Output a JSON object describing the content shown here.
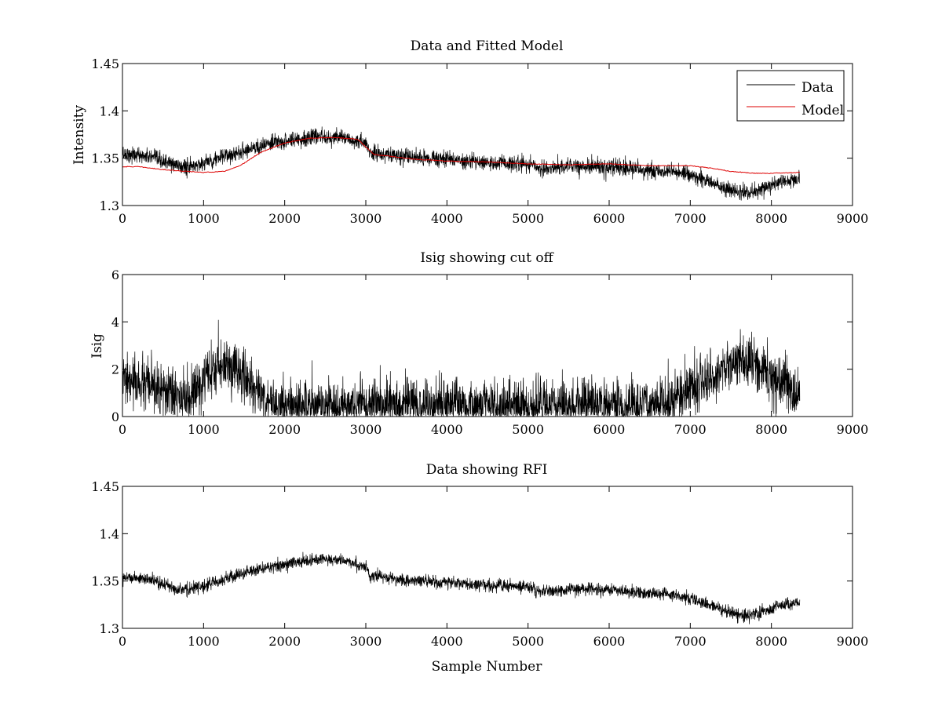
{
  "figure": {
    "background": "#ffffff"
  },
  "chart_data": [
    {
      "type": "line",
      "title": "Data and Fitted Model",
      "xlabel": "",
      "ylabel": "Intensity",
      "xlim": [
        0,
        9000
      ],
      "ylim": [
        1.3,
        1.45
      ],
      "xticks": [
        "0",
        "1000",
        "2000",
        "3000",
        "4000",
        "5000",
        "6000",
        "7000",
        "8000",
        "9000"
      ],
      "yticks": [
        "1.3",
        "1.35",
        "1.4",
        "1.45"
      ],
      "legend": {
        "position": "top-right",
        "entries": [
          "Data",
          "Model"
        ]
      },
      "series": [
        {
          "name": "Data",
          "color": "#000000",
          "noise": 0.0042,
          "x_end": 8350,
          "trend": [
            [
              0,
              1.355
            ],
            [
              300,
              1.352
            ],
            [
              600,
              1.344
            ],
            [
              800,
              1.34
            ],
            [
              1000,
              1.345
            ],
            [
              1300,
              1.353
            ],
            [
              1600,
              1.361
            ],
            [
              2000,
              1.368
            ],
            [
              2400,
              1.373
            ],
            [
              2700,
              1.372
            ],
            [
              3000,
              1.365
            ],
            [
              3050,
              1.356
            ],
            [
              3500,
              1.351
            ],
            [
              4000,
              1.349
            ],
            [
              4500,
              1.345
            ],
            [
              5000,
              1.344
            ],
            [
              5080,
              1.342
            ],
            [
              5100,
              1.338
            ],
            [
              5500,
              1.341
            ],
            [
              5800,
              1.342
            ],
            [
              6200,
              1.339
            ],
            [
              6800,
              1.335
            ],
            [
              7000,
              1.332
            ],
            [
              7300,
              1.323
            ],
            [
              7500,
              1.316
            ],
            [
              7700,
              1.313
            ],
            [
              7900,
              1.318
            ],
            [
              8100,
              1.324
            ],
            [
              8350,
              1.327
            ]
          ]
        },
        {
          "name": "Model",
          "color": "#dd0000",
          "x_end": 8350,
          "trend": [
            [
              0,
              1.341
            ],
            [
              200,
              1.341
            ],
            [
              500,
              1.338
            ],
            [
              800,
              1.336
            ],
            [
              1000,
              1.335
            ],
            [
              1250,
              1.336
            ],
            [
              1450,
              1.342
            ],
            [
              1700,
              1.356
            ],
            [
              2000,
              1.366
            ],
            [
              2300,
              1.371
            ],
            [
              2600,
              1.372
            ],
            [
              2900,
              1.37
            ],
            [
              3100,
              1.354
            ],
            [
              3600,
              1.349
            ],
            [
              4000,
              1.347
            ],
            [
              4500,
              1.346
            ],
            [
              5000,
              1.344
            ],
            [
              5500,
              1.343
            ],
            [
              6000,
              1.344
            ],
            [
              6500,
              1.342
            ],
            [
              7000,
              1.342
            ],
            [
              7300,
              1.339
            ],
            [
              7500,
              1.336
            ],
            [
              7800,
              1.334
            ],
            [
              8000,
              1.334
            ],
            [
              8350,
              1.335
            ]
          ]
        }
      ]
    },
    {
      "type": "line",
      "title": "Isig showing cut off",
      "xlabel": "",
      "ylabel": "Isig",
      "xlim": [
        0,
        9000
      ],
      "ylim": [
        0,
        6
      ],
      "xticks": [
        "0",
        "1000",
        "2000",
        "3000",
        "4000",
        "5000",
        "6000",
        "7000",
        "8000",
        "9000"
      ],
      "yticks": [
        "0",
        "2",
        "4",
        "6"
      ],
      "legend": null,
      "series": [
        {
          "color": "#000000",
          "noise": 0.55,
          "x_end": 8350,
          "trend": [
            [
              0,
              1.5
            ],
            [
              200,
              1.4
            ],
            [
              500,
              1.0
            ],
            [
              800,
              0.7
            ],
            [
              1000,
              1.4
            ],
            [
              1250,
              2.3
            ],
            [
              1450,
              1.9
            ],
            [
              1700,
              0.9
            ],
            [
              1900,
              0.45
            ],
            [
              2400,
              0.45
            ],
            [
              3000,
              0.45
            ],
            [
              4000,
              0.5
            ],
            [
              5000,
              0.45
            ],
            [
              6000,
              0.5
            ],
            [
              6700,
              0.5
            ],
            [
              7000,
              1.1
            ],
            [
              7300,
              1.8
            ],
            [
              7650,
              2.5
            ],
            [
              7900,
              1.9
            ],
            [
              8100,
              1.4
            ],
            [
              8350,
              0.9
            ]
          ]
        }
      ]
    },
    {
      "type": "line",
      "title": "Data showing RFI",
      "xlabel": "Sample Number",
      "ylabel": "",
      "xlim": [
        0,
        9000
      ],
      "ylim": [
        1.3,
        1.45
      ],
      "xticks": [
        "0",
        "1000",
        "2000",
        "3000",
        "4000",
        "5000",
        "6000",
        "7000",
        "8000",
        "9000"
      ],
      "yticks": [
        "1.3",
        "1.35",
        "1.4",
        "1.45"
      ],
      "legend": null,
      "series": [
        {
          "color": "#000000",
          "noise": 0.0032,
          "x_end": 8350,
          "trend": [
            [
              0,
              1.355
            ],
            [
              300,
              1.352
            ],
            [
              600,
              1.344
            ],
            [
              800,
              1.34
            ],
            [
              1000,
              1.345
            ],
            [
              1300,
              1.353
            ],
            [
              1600,
              1.361
            ],
            [
              2000,
              1.368
            ],
            [
              2400,
              1.373
            ],
            [
              2700,
              1.372
            ],
            [
              3000,
              1.365
            ],
            [
              3050,
              1.356
            ],
            [
              3500,
              1.351
            ],
            [
              4000,
              1.349
            ],
            [
              4500,
              1.345
            ],
            [
              5000,
              1.344
            ],
            [
              5080,
              1.342
            ],
            [
              5100,
              1.338
            ],
            [
              5500,
              1.341
            ],
            [
              5800,
              1.342
            ],
            [
              6200,
              1.339
            ],
            [
              6800,
              1.335
            ],
            [
              7000,
              1.332
            ],
            [
              7300,
              1.323
            ],
            [
              7500,
              1.316
            ],
            [
              7700,
              1.313
            ],
            [
              7900,
              1.318
            ],
            [
              8100,
              1.324
            ],
            [
              8350,
              1.327
            ]
          ]
        }
      ]
    }
  ]
}
